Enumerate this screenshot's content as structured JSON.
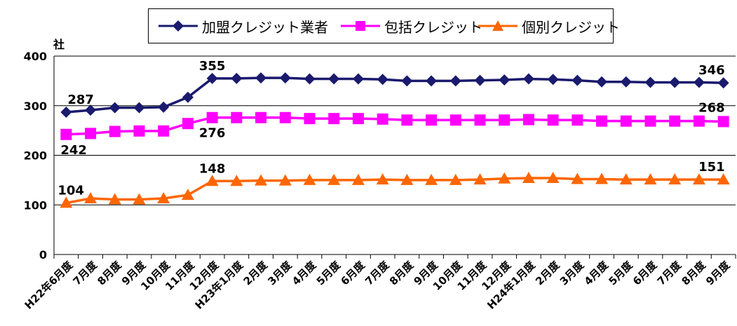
{
  "chart_data": {
    "type": "line",
    "ylabel": "社",
    "ylim": [
      0,
      400
    ],
    "yticks": [
      0,
      100,
      200,
      300,
      400
    ],
    "grid": "horizontal",
    "legend_position": "top",
    "categories": [
      "H22年6月度",
      "7月度",
      "8月度",
      "9月度",
      "10月度",
      "11月度",
      "12月度",
      "H23年1月度",
      "2月度",
      "3月度",
      "4月度",
      "5月度",
      "6月度",
      "7月度",
      "8月度",
      "9月度",
      "10月度",
      "11月度",
      "12月度",
      "H24年1月度",
      "2月度",
      "3月度",
      "4月度",
      "5月度",
      "6月度",
      "7月度",
      "8月度",
      "9月度"
    ],
    "series": [
      {
        "name": "加盟クレジット業者",
        "color": "#1a1a6e",
        "marker": "diamond",
        "values": [
          287,
          291,
          296,
          296,
          297,
          317,
          355,
          355,
          356,
          356,
          354,
          354,
          354,
          353,
          350,
          350,
          350,
          351,
          352,
          354,
          353,
          351,
          348,
          348,
          347,
          347,
          347,
          346
        ],
        "labels": [
          {
            "index": 0,
            "text": "287"
          },
          {
            "index": 6,
            "text": "355"
          },
          {
            "index": 27,
            "text": "346"
          }
        ]
      },
      {
        "name": "包括クレジット",
        "color": "#ff00ff",
        "marker": "square",
        "values": [
          242,
          244,
          248,
          249,
          249,
          264,
          276,
          276,
          276,
          276,
          274,
          274,
          274,
          273,
          271,
          271,
          271,
          271,
          271,
          272,
          271,
          271,
          269,
          269,
          269,
          269,
          269,
          268
        ],
        "labels": [
          {
            "index": 0,
            "text": "242"
          },
          {
            "index": 6,
            "text": "276"
          },
          {
            "index": 27,
            "text": "268"
          }
        ]
      },
      {
        "name": "個別クレジット",
        "color": "#ff6600",
        "marker": "triangle",
        "values": [
          104,
          113,
          111,
          111,
          113,
          120,
          148,
          148,
          149,
          149,
          150,
          150,
          150,
          151,
          150,
          150,
          150,
          151,
          153,
          154,
          154,
          152,
          152,
          151,
          151,
          151,
          151,
          151
        ],
        "labels": [
          {
            "index": 0,
            "text": "104"
          },
          {
            "index": 6,
            "text": "148"
          },
          {
            "index": 27,
            "text": "151"
          }
        ]
      }
    ]
  }
}
